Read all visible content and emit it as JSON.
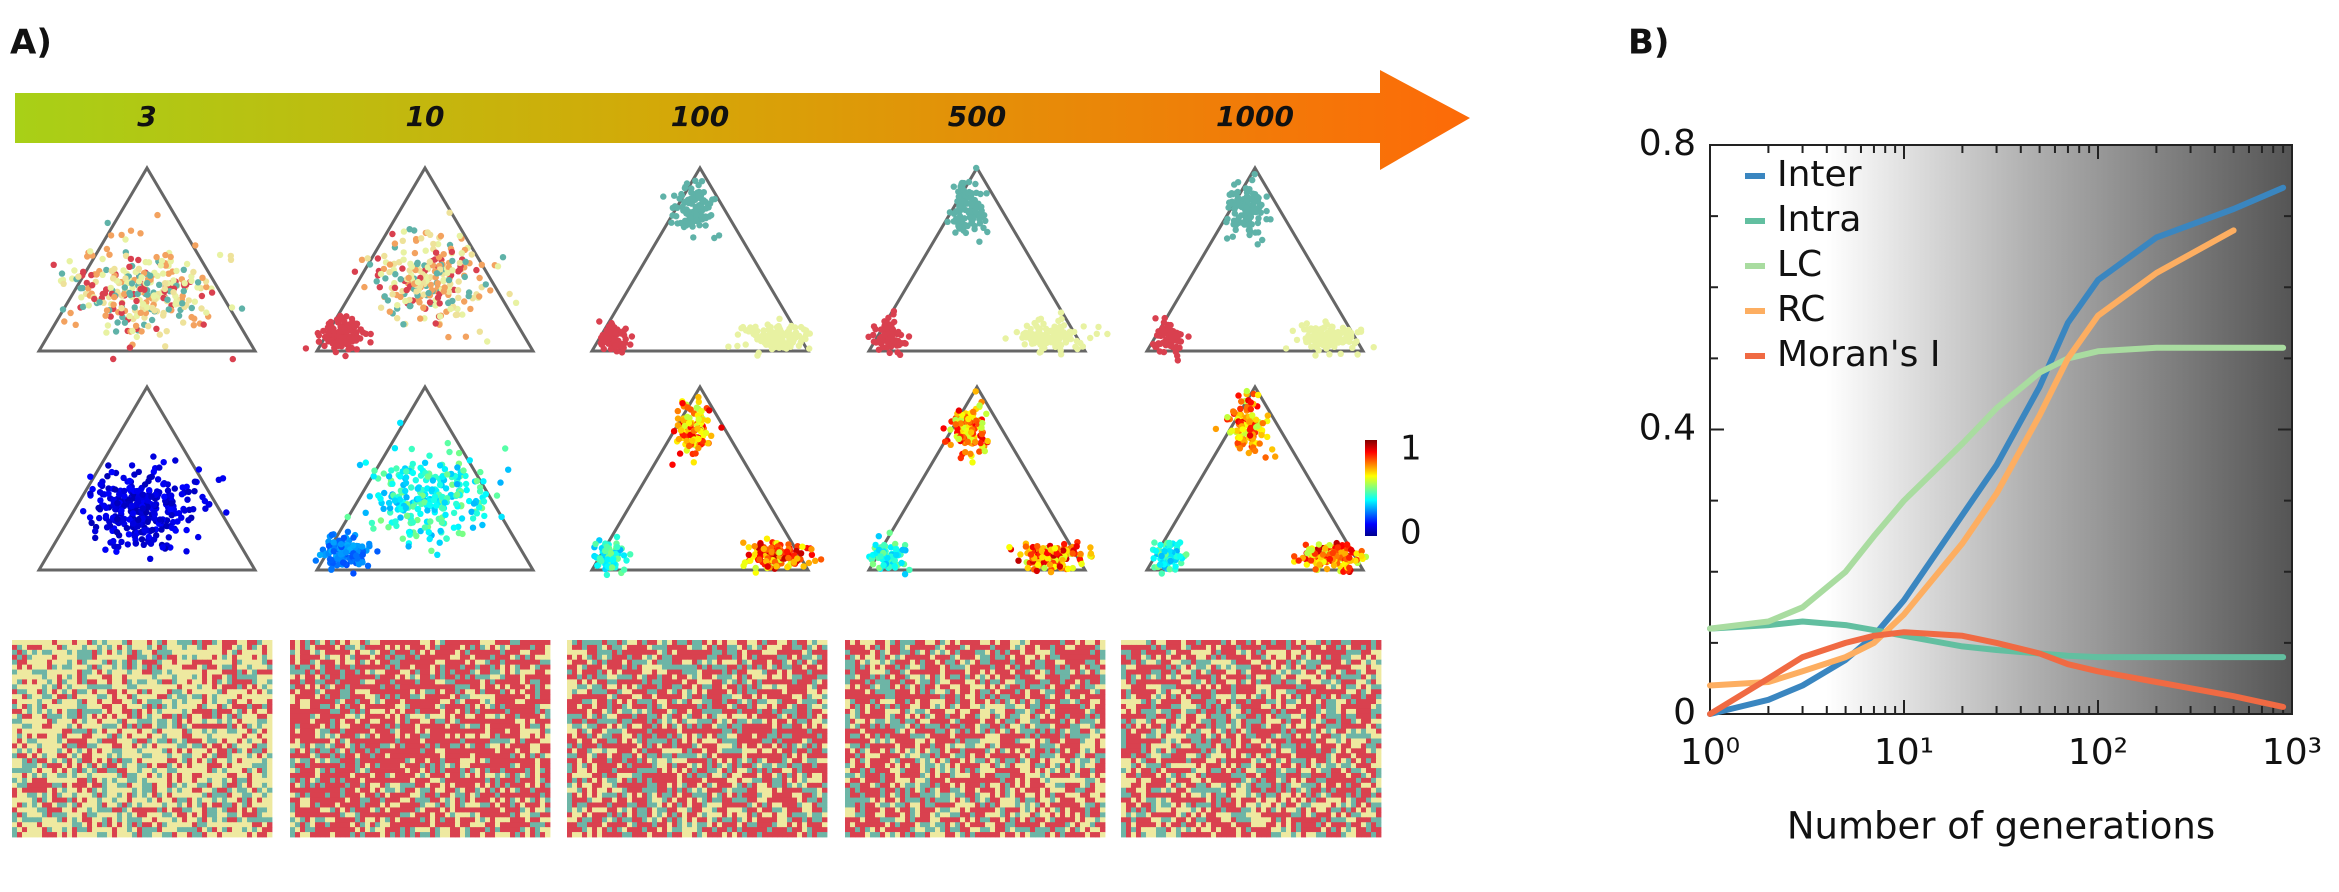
{
  "panel_a": {
    "label": "A)",
    "generations": [
      "3",
      "10",
      "100",
      "500",
      "1000"
    ],
    "colorbar_ticks": [
      1,
      0
    ]
  },
  "panel_b": {
    "label": "B)"
  },
  "chart_data": {
    "type": "line",
    "x_label": "Number of generations",
    "log_x": true,
    "x": [
      1,
      2,
      3,
      5,
      7,
      10,
      20,
      30,
      50,
      70,
      100,
      200,
      500,
      900
    ],
    "series": [
      {
        "name": "Inter",
        "color": "#3a86c0",
        "values": [
          0,
          0.02,
          0.04,
          0.076,
          0.11,
          0.16,
          0.28,
          0.35,
          0.46,
          0.55,
          0.61,
          0.67,
          0.71,
          0.74
        ]
      },
      {
        "name": "Intra",
        "color": "#62bfa0",
        "values": [
          0.12,
          0.125,
          0.13,
          0.125,
          0.118,
          0.11,
          0.095,
          0.09,
          0.085,
          0.082,
          0.08,
          0.08,
          0.08,
          0.08
        ]
      },
      {
        "name": "LC",
        "color": "#a9dca0",
        "values": [
          0.12,
          0.13,
          0.15,
          0.2,
          0.25,
          0.3,
          0.38,
          0.43,
          0.48,
          0.5,
          0.51,
          0.515,
          0.515,
          0.515
        ]
      },
      {
        "name": "RC",
        "color": "#fdae61",
        "values": [
          0.04,
          0.045,
          0.06,
          0.08,
          0.1,
          0.14,
          0.24,
          0.31,
          0.42,
          0.5,
          0.56,
          0.62,
          0.68,
          null
        ]
      },
      {
        "name": "Moran's I",
        "color": "#f06a43",
        "values": [
          0,
          0.05,
          0.08,
          0.1,
          0.11,
          0.115,
          0.11,
          0.1,
          0.085,
          0.07,
          0.06,
          0.045,
          0.025,
          0.01
        ]
      }
    ],
    "xlim": [
      1,
      1000
    ],
    "xticks": [
      {
        "value": 1,
        "label": "10⁰"
      },
      {
        "value": 10,
        "label": "10¹"
      },
      {
        "value": 100,
        "label": "10²"
      },
      {
        "value": 1000,
        "label": "10³"
      }
    ],
    "xminor_ticks": [
      2,
      3,
      4,
      5,
      6,
      7,
      8,
      9,
      20,
      30,
      40,
      50,
      60,
      70,
      80,
      90,
      200,
      300,
      400,
      500,
      600,
      700,
      800,
      900
    ],
    "ylim": [
      0,
      0.8
    ],
    "yticks": [
      0,
      0.4,
      0.8
    ],
    "yminor_ticks": [
      0.1,
      0.2,
      0.3,
      0.5,
      0.6,
      0.7
    ],
    "legend": "top-left"
  }
}
